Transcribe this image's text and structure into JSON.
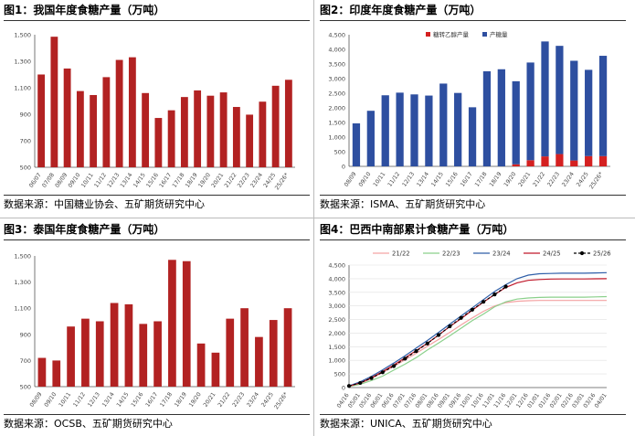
{
  "panels": [
    {
      "title": "图1：我国年度食糖产量（万吨）",
      "source": "数据来源：中国糖业协会、五矿期货研究中心"
    },
    {
      "title": "图2：印度年度食糖产量（万吨）",
      "source": "数据来源：ISMA、五矿期货研究中心"
    },
    {
      "title": "图3：泰国年度食糖产量（万吨）",
      "source": "数据来源：OCSB、五矿期货研究中心"
    },
    {
      "title": "图4：巴西中南部累计食糖产量（万吨）",
      "source": "数据来源：UNICA、五矿期货研究中心"
    }
  ],
  "colors": {
    "bar_red": "#b22222",
    "bar_blue": "#2e4fa0"
  },
  "chart_data": [
    {
      "type": "bar",
      "categories": [
        "06/07",
        "07/08",
        "08/09",
        "09/10",
        "10/11",
        "11/12",
        "12/13",
        "13/14",
        "14/15",
        "15/16",
        "16/17",
        "17/18",
        "18/19",
        "19/20",
        "20/21",
        "21/22",
        "22/23",
        "23/24",
        "24/25",
        "25/26*"
      ],
      "values": [
        1200,
        1485,
        1245,
        1075,
        1045,
        1180,
        1310,
        1330,
        1060,
        872,
        930,
        1030,
        1080,
        1040,
        1065,
        955,
        897,
        995,
        1115,
        1160
      ],
      "ylim": [
        500,
        1500
      ],
      "yticks": [
        "500",
        "700",
        "900",
        "1,100",
        "1,300",
        "1,500"
      ],
      "tickvals": [
        500,
        700,
        900,
        1100,
        1300,
        1500
      ],
      "color": "#b22222"
    },
    {
      "type": "bar",
      "categories": [
        "08/09",
        "09/10",
        "10/11",
        "11/12",
        "12/13",
        "13/14",
        "14/15",
        "15/16",
        "16/17",
        "17/18",
        "18/19",
        "19/20",
        "20/21",
        "21/22",
        "22/23",
        "23/24",
        "24/25",
        "25/26*"
      ],
      "series": [
        {
          "name": "糖转乙醇产量",
          "values": [
            0,
            0,
            0,
            0,
            0,
            0,
            0,
            0,
            0,
            0,
            0,
            70,
            210,
            340,
            420,
            200,
            350,
            350
          ],
          "color": "#d42020"
        },
        {
          "name": "产糖量",
          "values": [
            1470,
            1900,
            2430,
            2520,
            2460,
            2420,
            2830,
            2510,
            2020,
            3250,
            3320,
            2840,
            3340,
            3930,
            3700,
            3410,
            2950,
            3430
          ],
          "color": "#2e4fa0"
        }
      ],
      "legend_position": "top-center",
      "ylim": [
        0,
        4500
      ],
      "yticks": [
        "0",
        "500",
        "1,000",
        "1,500",
        "2,000",
        "2,500",
        "3,000",
        "3,500",
        "4,000",
        "4,500"
      ],
      "tickvals": [
        0,
        500,
        1000,
        1500,
        2000,
        2500,
        3000,
        3500,
        4000,
        4500
      ]
    },
    {
      "type": "bar",
      "categories": [
        "08/09",
        "09/10",
        "10/11",
        "11/12",
        "12/13",
        "13/14",
        "14/15",
        "15/16",
        "16/17",
        "17/18",
        "18/19",
        "19/20",
        "20/21",
        "21/22",
        "22/23",
        "23/24",
        "24/25",
        "25/26*"
      ],
      "values": [
        720,
        700,
        960,
        1020,
        1000,
        1140,
        1130,
        980,
        1000,
        1470,
        1460,
        830,
        760,
        1020,
        1100,
        880,
        1010,
        1100
      ],
      "ylim": [
        500,
        1500
      ],
      "yticks": [
        "500",
        "700",
        "900",
        "1,100",
        "1,300",
        "1,500"
      ],
      "tickvals": [
        500,
        700,
        900,
        1100,
        1300,
        1500
      ],
      "color": "#b22222"
    },
    {
      "type": "line",
      "categories": [
        "04/16",
        "05/01",
        "05/16",
        "06/01",
        "06/16",
        "07/01",
        "07/16",
        "08/01",
        "08/16",
        "09/01",
        "09/16",
        "10/01",
        "10/16",
        "11/01",
        "11/16",
        "12/01",
        "12/16",
        "01/01",
        "01/16",
        "02/01",
        "02/16",
        "03/01",
        "03/16",
        "04/01"
      ],
      "series": [
        {
          "name": "21/22",
          "color": "#f4a3a3",
          "dashed": false,
          "markers": false,
          "values": [
            50,
            150,
            330,
            550,
            780,
            1020,
            1260,
            1520,
            1770,
            2030,
            2300,
            2560,
            2800,
            3000,
            3120,
            3170,
            3190,
            3200,
            3200,
            3200,
            3200,
            3200,
            3200,
            3200
          ]
        },
        {
          "name": "22/23",
          "color": "#8bd08b",
          "dashed": false,
          "markers": false,
          "values": [
            40,
            120,
            260,
            420,
            640,
            860,
            1100,
            1380,
            1640,
            1900,
            2180,
            2460,
            2700,
            2970,
            3150,
            3250,
            3290,
            3310,
            3320,
            3320,
            3320,
            3320,
            3330,
            3340
          ]
        },
        {
          "name": "23/24",
          "color": "#2e5ea8",
          "dashed": false,
          "markers": false,
          "values": [
            60,
            210,
            410,
            650,
            900,
            1170,
            1450,
            1730,
            2030,
            2330,
            2630,
            2930,
            3230,
            3530,
            3780,
            4000,
            4130,
            4180,
            4190,
            4200,
            4200,
            4200,
            4210,
            4220
          ]
        },
        {
          "name": "24/25",
          "color": "#c0182a",
          "dashed": false,
          "markers": false,
          "values": [
            50,
            170,
            360,
            590,
            830,
            1090,
            1360,
            1630,
            1930,
            2240,
            2530,
            2840,
            3140,
            3420,
            3680,
            3850,
            3940,
            3970,
            3985,
            3990,
            3990,
            3990,
            3995,
            4000
          ]
        },
        {
          "name": "25/26",
          "color": "#000000",
          "dashed": true,
          "markers": true,
          "values": [
            60,
            170,
            350,
            560,
            790,
            1060,
            1340,
            1620,
            1930,
            2250,
            2560,
            2860,
            3150,
            3420,
            3710,
            null,
            null,
            null,
            null,
            null,
            null,
            null,
            null,
            null
          ]
        }
      ],
      "legend_position": "top",
      "ylim": [
        0,
        4500
      ],
      "yticks": [
        "0",
        "500",
        "1,000",
        "1,500",
        "2,000",
        "2,500",
        "3,000",
        "3,500",
        "4,000",
        "4,500"
      ],
      "tickvals": [
        0,
        500,
        1000,
        1500,
        2000,
        2500,
        3000,
        3500,
        4000,
        4500
      ]
    }
  ]
}
